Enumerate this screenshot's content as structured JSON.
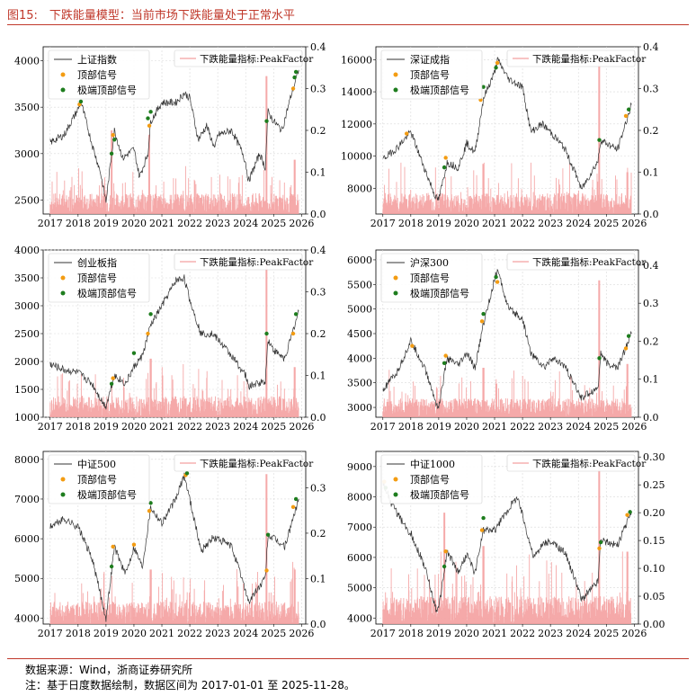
{
  "title": "图15:　下跌能量模型：当前市场下跌能量处于正常水平",
  "footer": {
    "source": "数据来源：Wind，浙商证券研究所",
    "note": "注：基于日度数据绘制，数据区间为 2017-01-01 至 2025-11-28。"
  },
  "colors": {
    "price": "#333333",
    "factor": "#f4a0a0",
    "top": "#f39c12",
    "extreme": "#1e7d1e",
    "accent": "#c0392b"
  },
  "chart_data": [
    {
      "type": "line",
      "title": "上证指数",
      "legend": {
        "price": "上证指数",
        "top": "顶部信号",
        "extreme": "极端顶部信号",
        "factor": "下跌能量指标:PeakFactor"
      },
      "x": [
        2017,
        2017.5,
        2018,
        2018.1,
        2018.5,
        2018.8,
        2019,
        2019.3,
        2019.6,
        2020,
        2020.2,
        2020.5,
        2020.6,
        2021,
        2021.5,
        2021.8,
        2022,
        2022.3,
        2022.6,
        2022.9,
        2023,
        2023.5,
        2023.9,
        2024,
        2024.1,
        2024.5,
        2024.7,
        2024.8,
        2025,
        2025.3,
        2025.6,
        2025.9
      ],
      "y": [
        3120,
        3200,
        3480,
        3560,
        3100,
        2800,
        2480,
        3250,
        2950,
        3050,
        2750,
        3000,
        3350,
        3550,
        3550,
        3650,
        3600,
        3150,
        3300,
        3050,
        3200,
        3250,
        3000,
        2900,
        2700,
        3000,
        2850,
        3450,
        3350,
        3250,
        3600,
        3900
      ],
      "ylim": [
        2350,
        4150
      ],
      "yticks": [
        2500,
        3000,
        3500,
        4000
      ],
      "y2lim": [
        0,
        0.4
      ],
      "y2ticks": [
        0,
        0.1,
        0.2,
        0.3,
        0.4
      ],
      "top_signals": [
        [
          2018.05,
          3530
        ],
        [
          2019.25,
          3200
        ],
        [
          2020.55,
          3300
        ],
        [
          2025.7,
          3700
        ]
      ],
      "extreme_signals": [
        [
          2018.1,
          3560
        ],
        [
          2019.2,
          3000
        ],
        [
          2019.3,
          3150
        ],
        [
          2020.5,
          3380
        ],
        [
          2020.6,
          3450
        ],
        [
          2024.75,
          3350
        ],
        [
          2025.75,
          3820
        ],
        [
          2025.8,
          3880
        ]
      ],
      "spikes": [
        [
          2019.2,
          0.2
        ],
        [
          2020.55,
          0.19
        ],
        [
          2024.75,
          0.33
        ],
        [
          2025.75,
          0.13
        ]
      ]
    },
    {
      "type": "line",
      "title": "深证成指",
      "legend": {
        "price": "深证成指",
        "top": "顶部信号",
        "extreme": "极端顶部信号",
        "factor": "下跌能量指标:PeakFactor"
      },
      "x": [
        2017,
        2017.5,
        2018,
        2018.5,
        2018.9,
        2019,
        2019.3,
        2019.7,
        2020,
        2020.3,
        2020.6,
        2021,
        2021.1,
        2021.5,
        2022,
        2022.3,
        2022.7,
        2023,
        2023.5,
        2024,
        2024.1,
        2024.7,
        2024.8,
        2025,
        2025.4,
        2025.9
      ],
      "y": [
        9800,
        10500,
        11500,
        9200,
        7400,
        7300,
        9600,
        9300,
        10800,
        10200,
        13600,
        15200,
        16000,
        14800,
        14300,
        11500,
        12000,
        11500,
        10500,
        8500,
        7900,
        9700,
        11000,
        10800,
        10400,
        13200
      ],
      "ylim": [
        6400,
        16800
      ],
      "yticks": [
        8000,
        10000,
        12000,
        14000,
        16000
      ],
      "y2lim": [
        0,
        0.4
      ],
      "y2ticks": [
        0,
        0.1,
        0.2,
        0.3,
        0.4
      ],
      "top_signals": [
        [
          2017.85,
          11400
        ],
        [
          2019.25,
          9900
        ],
        [
          2020.5,
          13500
        ],
        [
          2021.1,
          15800
        ],
        [
          2025.7,
          12500
        ]
      ],
      "extreme_signals": [
        [
          2019.2,
          9300
        ],
        [
          2020.6,
          14300
        ],
        [
          2021.05,
          15500
        ],
        [
          2024.75,
          11000
        ],
        [
          2025.8,
          12900
        ]
      ],
      "spikes": [
        [
          2020.6,
          0.12
        ],
        [
          2024.75,
          0.37
        ],
        [
          2025.75,
          0.1
        ]
      ]
    },
    {
      "type": "line",
      "title": "创业板指",
      "legend": {
        "price": "创业板指",
        "top": "顶部信号",
        "extreme": "极端顶部信号",
        "factor": "下跌能量指标:PeakFactor"
      },
      "x": [
        2017,
        2017.5,
        2018,
        2018.5,
        2018.9,
        2019,
        2019.3,
        2019.7,
        2020,
        2020.3,
        2020.6,
        2021,
        2021.5,
        2021.8,
        2022,
        2022.4,
        2022.8,
        2023,
        2023.5,
        2024,
        2024.1,
        2024.7,
        2024.8,
        2025,
        2025.4,
        2025.9
      ],
      "y": [
        1950,
        1850,
        1800,
        1600,
        1250,
        1200,
        1750,
        1600,
        1900,
        2100,
        2650,
        3000,
        3450,
        3500,
        3100,
        2500,
        2500,
        2400,
        2100,
        1750,
        1550,
        1650,
        2400,
        2200,
        2050,
        2900
      ],
      "ylim": [
        1000,
        4000
      ],
      "yticks": [
        1000,
        1500,
        2000,
        2500,
        3000,
        3500,
        4000
      ],
      "y2lim": [
        0,
        0.4
      ],
      "y2ticks": [
        0,
        0.1,
        0.2,
        0.3,
        0.4
      ],
      "top_signals": [
        [
          2019.25,
          1700
        ],
        [
          2020.5,
          2500
        ],
        [
          2025.7,
          2500
        ]
      ],
      "extreme_signals": [
        [
          2019.2,
          1600
        ],
        [
          2020.0,
          2150
        ],
        [
          2020.6,
          2850
        ],
        [
          2024.75,
          2500
        ],
        [
          2025.8,
          2850
        ]
      ],
      "spikes": [
        [
          2020.6,
          0.14
        ],
        [
          2024.75,
          0.37
        ],
        [
          2025.75,
          0.12
        ]
      ]
    },
    {
      "type": "line",
      "title": "沪深300",
      "legend": {
        "price": "沪深300",
        "top": "顶部信号",
        "extreme": "极端顶部信号",
        "factor": "下跌能量指标:PeakFactor"
      },
      "x": [
        2017,
        2017.5,
        2018,
        2018.5,
        2018.9,
        2019,
        2019.3,
        2019.7,
        2020,
        2020.3,
        2020.6,
        2021,
        2021.1,
        2021.5,
        2022,
        2022.3,
        2022.8,
        2023,
        2023.5,
        2024,
        2024.1,
        2024.7,
        2024.8,
        2025,
        2025.4,
        2025.9
      ],
      "y": [
        3350,
        3700,
        4350,
        3800,
        3100,
        3000,
        4000,
        3850,
        4100,
        3800,
        4700,
        5600,
        5800,
        5000,
        4800,
        4100,
        3800,
        4000,
        3850,
        3300,
        3200,
        3400,
        4100,
        3900,
        3800,
        4500
      ],
      "ylim": [
        2800,
        6200
      ],
      "yticks": [
        3000,
        3500,
        4000,
        4500,
        5000,
        5500,
        6000
      ],
      "y2lim": [
        0,
        0.44
      ],
      "y2ticks": [
        0,
        0.1,
        0.2,
        0.3,
        0.4
      ],
      "top_signals": [
        [
          2018.05,
          4250
        ],
        [
          2019.25,
          4050
        ],
        [
          2020.55,
          4750
        ],
        [
          2021.1,
          5550
        ],
        [
          2025.7,
          4200
        ]
      ],
      "extreme_signals": [
        [
          2019.2,
          3900
        ],
        [
          2020.6,
          4900
        ],
        [
          2021.05,
          5650
        ],
        [
          2024.75,
          4000
        ],
        [
          2025.8,
          4450
        ]
      ],
      "spikes": [
        [
          2020.6,
          0.13
        ],
        [
          2024.75,
          0.36
        ],
        [
          2025.75,
          0.14
        ]
      ]
    },
    {
      "type": "line",
      "title": "中证500",
      "legend": {
        "price": "中证500",
        "top": "顶部信号",
        "extreme": "极端顶部信号",
        "factor": "下跌能量指标:PeakFactor"
      },
      "x": [
        2017,
        2017.5,
        2018,
        2018.5,
        2018.9,
        2019,
        2019.3,
        2019.7,
        2020,
        2020.3,
        2020.6,
        2021,
        2021.5,
        2021.8,
        2022,
        2022.4,
        2022.8,
        2023,
        2023.5,
        2024,
        2024.1,
        2024.7,
        2024.8,
        2025,
        2025.4,
        2025.9
      ],
      "y": [
        6300,
        6500,
        6300,
        5500,
        4300,
        4000,
        5800,
        5100,
        5800,
        5300,
        6800,
        6400,
        7000,
        7600,
        7000,
        5700,
        6000,
        6000,
        5800,
        4700,
        4400,
        5000,
        6100,
        6000,
        5800,
        7000
      ],
      "ylim": [
        3850,
        8200
      ],
      "yticks": [
        4000,
        5000,
        6000,
        7000,
        8000
      ],
      "y2lim": [
        0,
        0.38
      ],
      "y2ticks": [
        0,
        0.1,
        0.2,
        0.3
      ],
      "top_signals": [
        [
          2019.25,
          5800
        ],
        [
          2020.0,
          5850
        ],
        [
          2020.55,
          6700
        ],
        [
          2021.85,
          7600
        ],
        [
          2024.75,
          5200
        ],
        [
          2025.7,
          6800
        ]
      ],
      "extreme_signals": [
        [
          2019.2,
          5300
        ],
        [
          2020.6,
          6900
        ],
        [
          2021.9,
          7650
        ],
        [
          2024.8,
          6100
        ],
        [
          2025.8,
          7000
        ]
      ],
      "spikes": [
        [
          2020.6,
          0.12
        ],
        [
          2024.75,
          0.33
        ],
        [
          2025.75,
          0.12
        ]
      ]
    },
    {
      "type": "line",
      "title": "中证1000",
      "legend": {
        "price": "中证1000",
        "top": "顶部信号",
        "extreme": "极端顶部信号",
        "factor": "下跌能量指标:PeakFactor"
      },
      "x": [
        2017,
        2017.3,
        2017.8,
        2018,
        2018.5,
        2018.9,
        2019,
        2019.3,
        2019.7,
        2020,
        2020.3,
        2020.6,
        2021,
        2021.5,
        2021.8,
        2022,
        2022.4,
        2022.8,
        2023,
        2023.5,
        2024,
        2024.1,
        2024.7,
        2024.8,
        2025,
        2025.4,
        2025.9
      ],
      "y": [
        8500,
        7800,
        7000,
        6800,
        5700,
        4300,
        4300,
        6200,
        5500,
        6100,
        5500,
        6900,
        6900,
        7600,
        8000,
        7400,
        6000,
        6500,
        6500,
        6200,
        5000,
        4600,
        5200,
        6600,
        6500,
        6400,
        7500
      ],
      "ylim": [
        3800,
        9500
      ],
      "yticks": [
        4000,
        5000,
        6000,
        7000,
        8000,
        9000
      ],
      "y2lim": [
        0,
        0.31
      ],
      "y2ticks": [
        0,
        0.05,
        0.1,
        0.15,
        0.2,
        0.25,
        0.3
      ],
      "top_signals": [
        [
          2017.05,
          8500
        ],
        [
          2019.25,
          6200
        ],
        [
          2020.55,
          6900
        ],
        [
          2024.75,
          6300
        ],
        [
          2025.75,
          7400
        ]
      ],
      "extreme_signals": [
        [
          2017.1,
          8300
        ],
        [
          2019.2,
          5700
        ],
        [
          2020.6,
          7300
        ],
        [
          2024.8,
          6500
        ],
        [
          2025.85,
          7500
        ]
      ],
      "spikes": [
        [
          2019.2,
          0.2
        ],
        [
          2020.6,
          0.14
        ],
        [
          2024.75,
          0.29
        ],
        [
          2025.75,
          0.13
        ]
      ]
    }
  ]
}
